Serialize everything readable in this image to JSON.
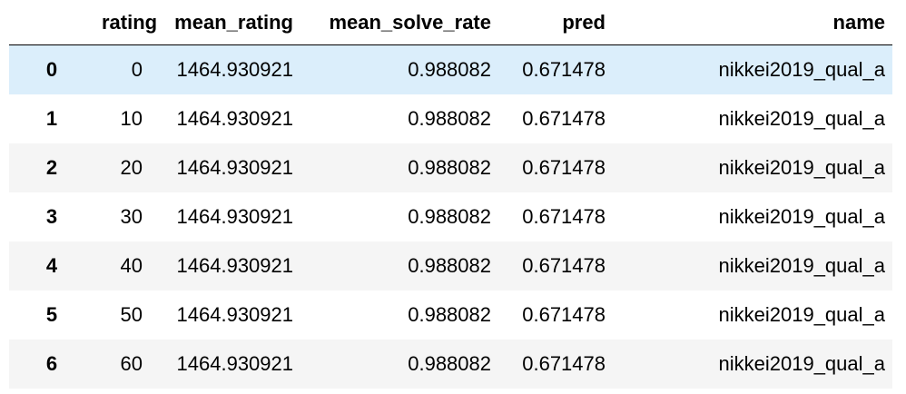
{
  "table": {
    "columns": [
      "rating",
      "mean_rating",
      "mean_solve_rate",
      "pred",
      "name"
    ],
    "rows": [
      [
        0,
        0,
        1464.930921,
        0.988082,
        0.671478,
        "nikkei2019_qual_a"
      ],
      [
        1,
        10,
        1464.930921,
        0.988082,
        0.671478,
        "nikkei2019_qual_a"
      ],
      [
        2,
        20,
        1464.930921,
        0.988082,
        0.671478,
        "nikkei2019_qual_a"
      ],
      [
        3,
        30,
        1464.930921,
        0.988082,
        0.671478,
        "nikkei2019_qual_a"
      ],
      [
        4,
        40,
        1464.930921,
        0.988082,
        0.671478,
        "nikkei2019_qual_a"
      ],
      [
        5,
        50,
        1464.930921,
        0.988082,
        0.671478,
        "nikkei2019_qual_a"
      ],
      [
        6,
        60,
        1464.930921,
        0.988082,
        0.671478,
        "nikkei2019_qual_a"
      ]
    ]
  }
}
